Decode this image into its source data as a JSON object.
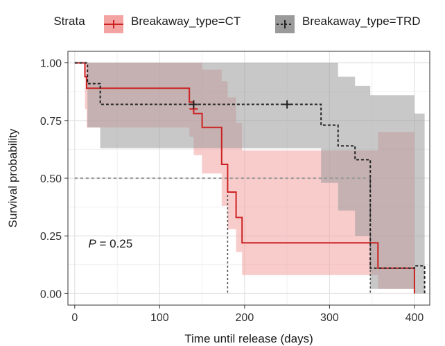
{
  "chart_data": {
    "type": "line",
    "subtype": "kaplan-meier survival curve with confidence bands",
    "xlabel": "Time until release (days)",
    "ylabel": "Survival probability",
    "xlim": [
      -8,
      418
    ],
    "ylim": [
      -0.05,
      1.05
    ],
    "x_ticks": [
      0,
      100,
      200,
      300,
      400
    ],
    "y_ticks": [
      0.0,
      0.25,
      0.5,
      0.75,
      1.0
    ],
    "x_tick_labels": [
      "0",
      "100",
      "200",
      "300",
      "400"
    ],
    "y_tick_labels": [
      "0.00",
      "0.25",
      "0.50",
      "0.75",
      "1.00"
    ],
    "grid": true,
    "legend_title": "Strata",
    "legend_position": "top",
    "annotation": {
      "label_italic": "P",
      "label_rest": " = 0.25",
      "x": 16,
      "y": 0.2
    },
    "median_reference_line": {
      "y": 0.5
    },
    "series": [
      {
        "name": "Breakaway_type=CT",
        "color": "#cc2222",
        "band_color": "#f4a3a3",
        "line_style": "solid",
        "step_points": [
          [
            0,
            1.0
          ],
          [
            12,
            1.0
          ],
          [
            12,
            0.94
          ],
          [
            14,
            0.94
          ],
          [
            14,
            0.89
          ],
          [
            135,
            0.89
          ],
          [
            135,
            0.83
          ],
          [
            140,
            0.83
          ],
          [
            140,
            0.78
          ],
          [
            150,
            0.78
          ],
          [
            150,
            0.72
          ],
          [
            173,
            0.72
          ],
          [
            173,
            0.56
          ],
          [
            180,
            0.56
          ],
          [
            180,
            0.44
          ],
          [
            190,
            0.44
          ],
          [
            190,
            0.33
          ],
          [
            197,
            0.33
          ],
          [
            197,
            0.22
          ],
          [
            357,
            0.22
          ],
          [
            357,
            0.11
          ],
          [
            400,
            0.11
          ],
          [
            400,
            0.0
          ]
        ],
        "band_upper": [
          [
            0,
            1.0
          ],
          [
            12,
            1.0
          ],
          [
            14,
            1.0
          ],
          [
            135,
            1.0
          ],
          [
            140,
            1.0
          ],
          [
            150,
            0.97
          ],
          [
            173,
            0.92
          ],
          [
            180,
            0.85
          ],
          [
            190,
            0.74
          ],
          [
            197,
            0.62
          ],
          [
            357,
            0.7
          ],
          [
            400,
            0.7
          ]
        ],
        "band_lower": [
          [
            0,
            1.0
          ],
          [
            12,
            0.8
          ],
          [
            14,
            0.72
          ],
          [
            135,
            0.68
          ],
          [
            140,
            0.6
          ],
          [
            150,
            0.52
          ],
          [
            173,
            0.38
          ],
          [
            180,
            0.28
          ],
          [
            190,
            0.18
          ],
          [
            197,
            0.08
          ],
          [
            357,
            0.02
          ],
          [
            400,
            0.0
          ]
        ],
        "censor_marks": [
          [
            140,
            0.8
          ]
        ],
        "median": 180
      },
      {
        "name": "Breakaway_type=TRD",
        "color": "#222222",
        "band_color": "#9a9a9a",
        "line_style": "dashed",
        "step_points": [
          [
            0,
            1.0
          ],
          [
            15,
            1.0
          ],
          [
            15,
            0.91
          ],
          [
            30,
            0.91
          ],
          [
            30,
            0.82
          ],
          [
            290,
            0.82
          ],
          [
            290,
            0.73
          ],
          [
            310,
            0.73
          ],
          [
            310,
            0.64
          ],
          [
            330,
            0.64
          ],
          [
            330,
            0.58
          ],
          [
            348,
            0.58
          ],
          [
            348,
            0.11
          ],
          [
            400,
            0.11
          ],
          [
            400,
            0.12
          ],
          [
            412,
            0.12
          ],
          [
            412,
            0.0
          ]
        ],
        "band_upper": [
          [
            0,
            1.0
          ],
          [
            15,
            1.0
          ],
          [
            30,
            1.0
          ],
          [
            290,
            1.0
          ],
          [
            310,
            0.94
          ],
          [
            330,
            0.9
          ],
          [
            348,
            0.86
          ],
          [
            400,
            0.78
          ],
          [
            412,
            0.78
          ]
        ],
        "band_lower": [
          [
            0,
            1.0
          ],
          [
            15,
            0.72
          ],
          [
            30,
            0.63
          ],
          [
            290,
            0.48
          ],
          [
            310,
            0.36
          ],
          [
            330,
            0.25
          ],
          [
            348,
            0.02
          ],
          [
            400,
            0.0
          ],
          [
            412,
            0.0
          ]
        ],
        "censor_marks": [
          [
            140,
            0.82
          ],
          [
            250,
            0.82
          ]
        ],
        "median": 348
      }
    ]
  }
}
